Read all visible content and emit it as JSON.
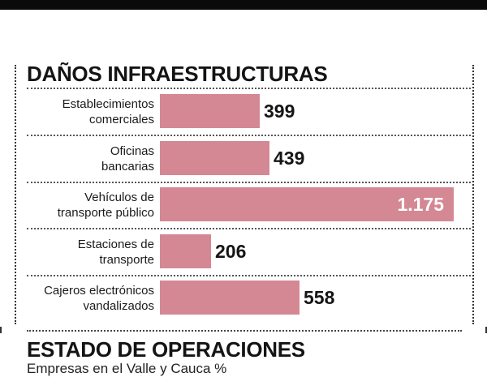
{
  "colors": {
    "bar": "#d48893",
    "text": "#111111",
    "bar_label_inside": "#ffffff"
  },
  "sections": {
    "next_title": "ESTADO DE OPERACIONES",
    "next_subtitle": "Empresas en el Valle y Cauca %"
  },
  "chart_data": {
    "type": "bar",
    "orientation": "horizontal",
    "title": "DAÑOS INFRAESTRUCTURAS",
    "xlabel": "",
    "ylabel": "",
    "xlim": [
      0,
      1175
    ],
    "grid": true,
    "categories": [
      "Establecimientos\ncomerciales",
      "Oficinas\nbancarias",
      "Vehículos de\ntransporte público",
      "Estaciones de\ntransporte",
      "Cajeros electrónicos\nvandalizados"
    ],
    "values": [
      399,
      439,
      1175,
      206,
      558
    ],
    "value_labels": [
      "399",
      "439",
      "1.175",
      "206",
      "558"
    ]
  }
}
